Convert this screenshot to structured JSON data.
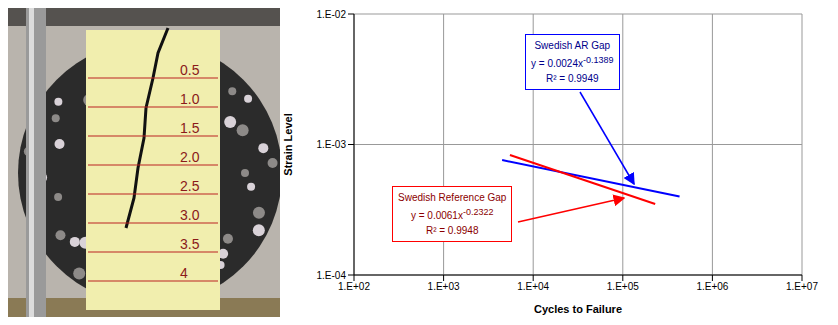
{
  "photo": {
    "scale_labels": [
      "0.5",
      "1.0",
      "1.5",
      "2.0",
      "2.5",
      "3.0",
      "3.5",
      "4"
    ]
  },
  "chart_data": {
    "type": "line",
    "log": true,
    "grid": true,
    "x_label": "Cycles to Failure",
    "y_label": "Strain Level",
    "xlim": [
      100,
      10000000
    ],
    "xticks": [
      {
        "value": 100,
        "label": "1.E+02"
      },
      {
        "value": 1000,
        "label": "1.E+03"
      },
      {
        "value": 10000,
        "label": "1.E+04"
      },
      {
        "value": 100000,
        "label": "1.E+05"
      },
      {
        "value": 1000000,
        "label": "1.E+06"
      },
      {
        "value": 10000000,
        "label": "1.E+07"
      }
    ],
    "ylim": [
      0.0001,
      0.01
    ],
    "yticks": [
      {
        "value": 0.0001,
        "label": "1.E-04"
      },
      {
        "value": 0.001,
        "label": "1.E-03"
      },
      {
        "value": 0.01,
        "label": "1.E-02"
      }
    ],
    "series": [
      {
        "name": "Swedish AR Gap",
        "color": "#0000ff",
        "x": [
          4500,
          430000
        ],
        "values": [
          0.00076,
          0.0004
        ],
        "equation": "y = 0.0024x-0.1389",
        "r_squared": "R² = 0.9949"
      },
      {
        "name": "Swedish Reference Gap",
        "color": "#ff0000",
        "x": [
          5500,
          230000
        ],
        "values": [
          0.00083,
          0.00035
        ],
        "equation": "y = 0.0061x-0.2322",
        "r_squared": "R² = 0.9948"
      }
    ]
  }
}
